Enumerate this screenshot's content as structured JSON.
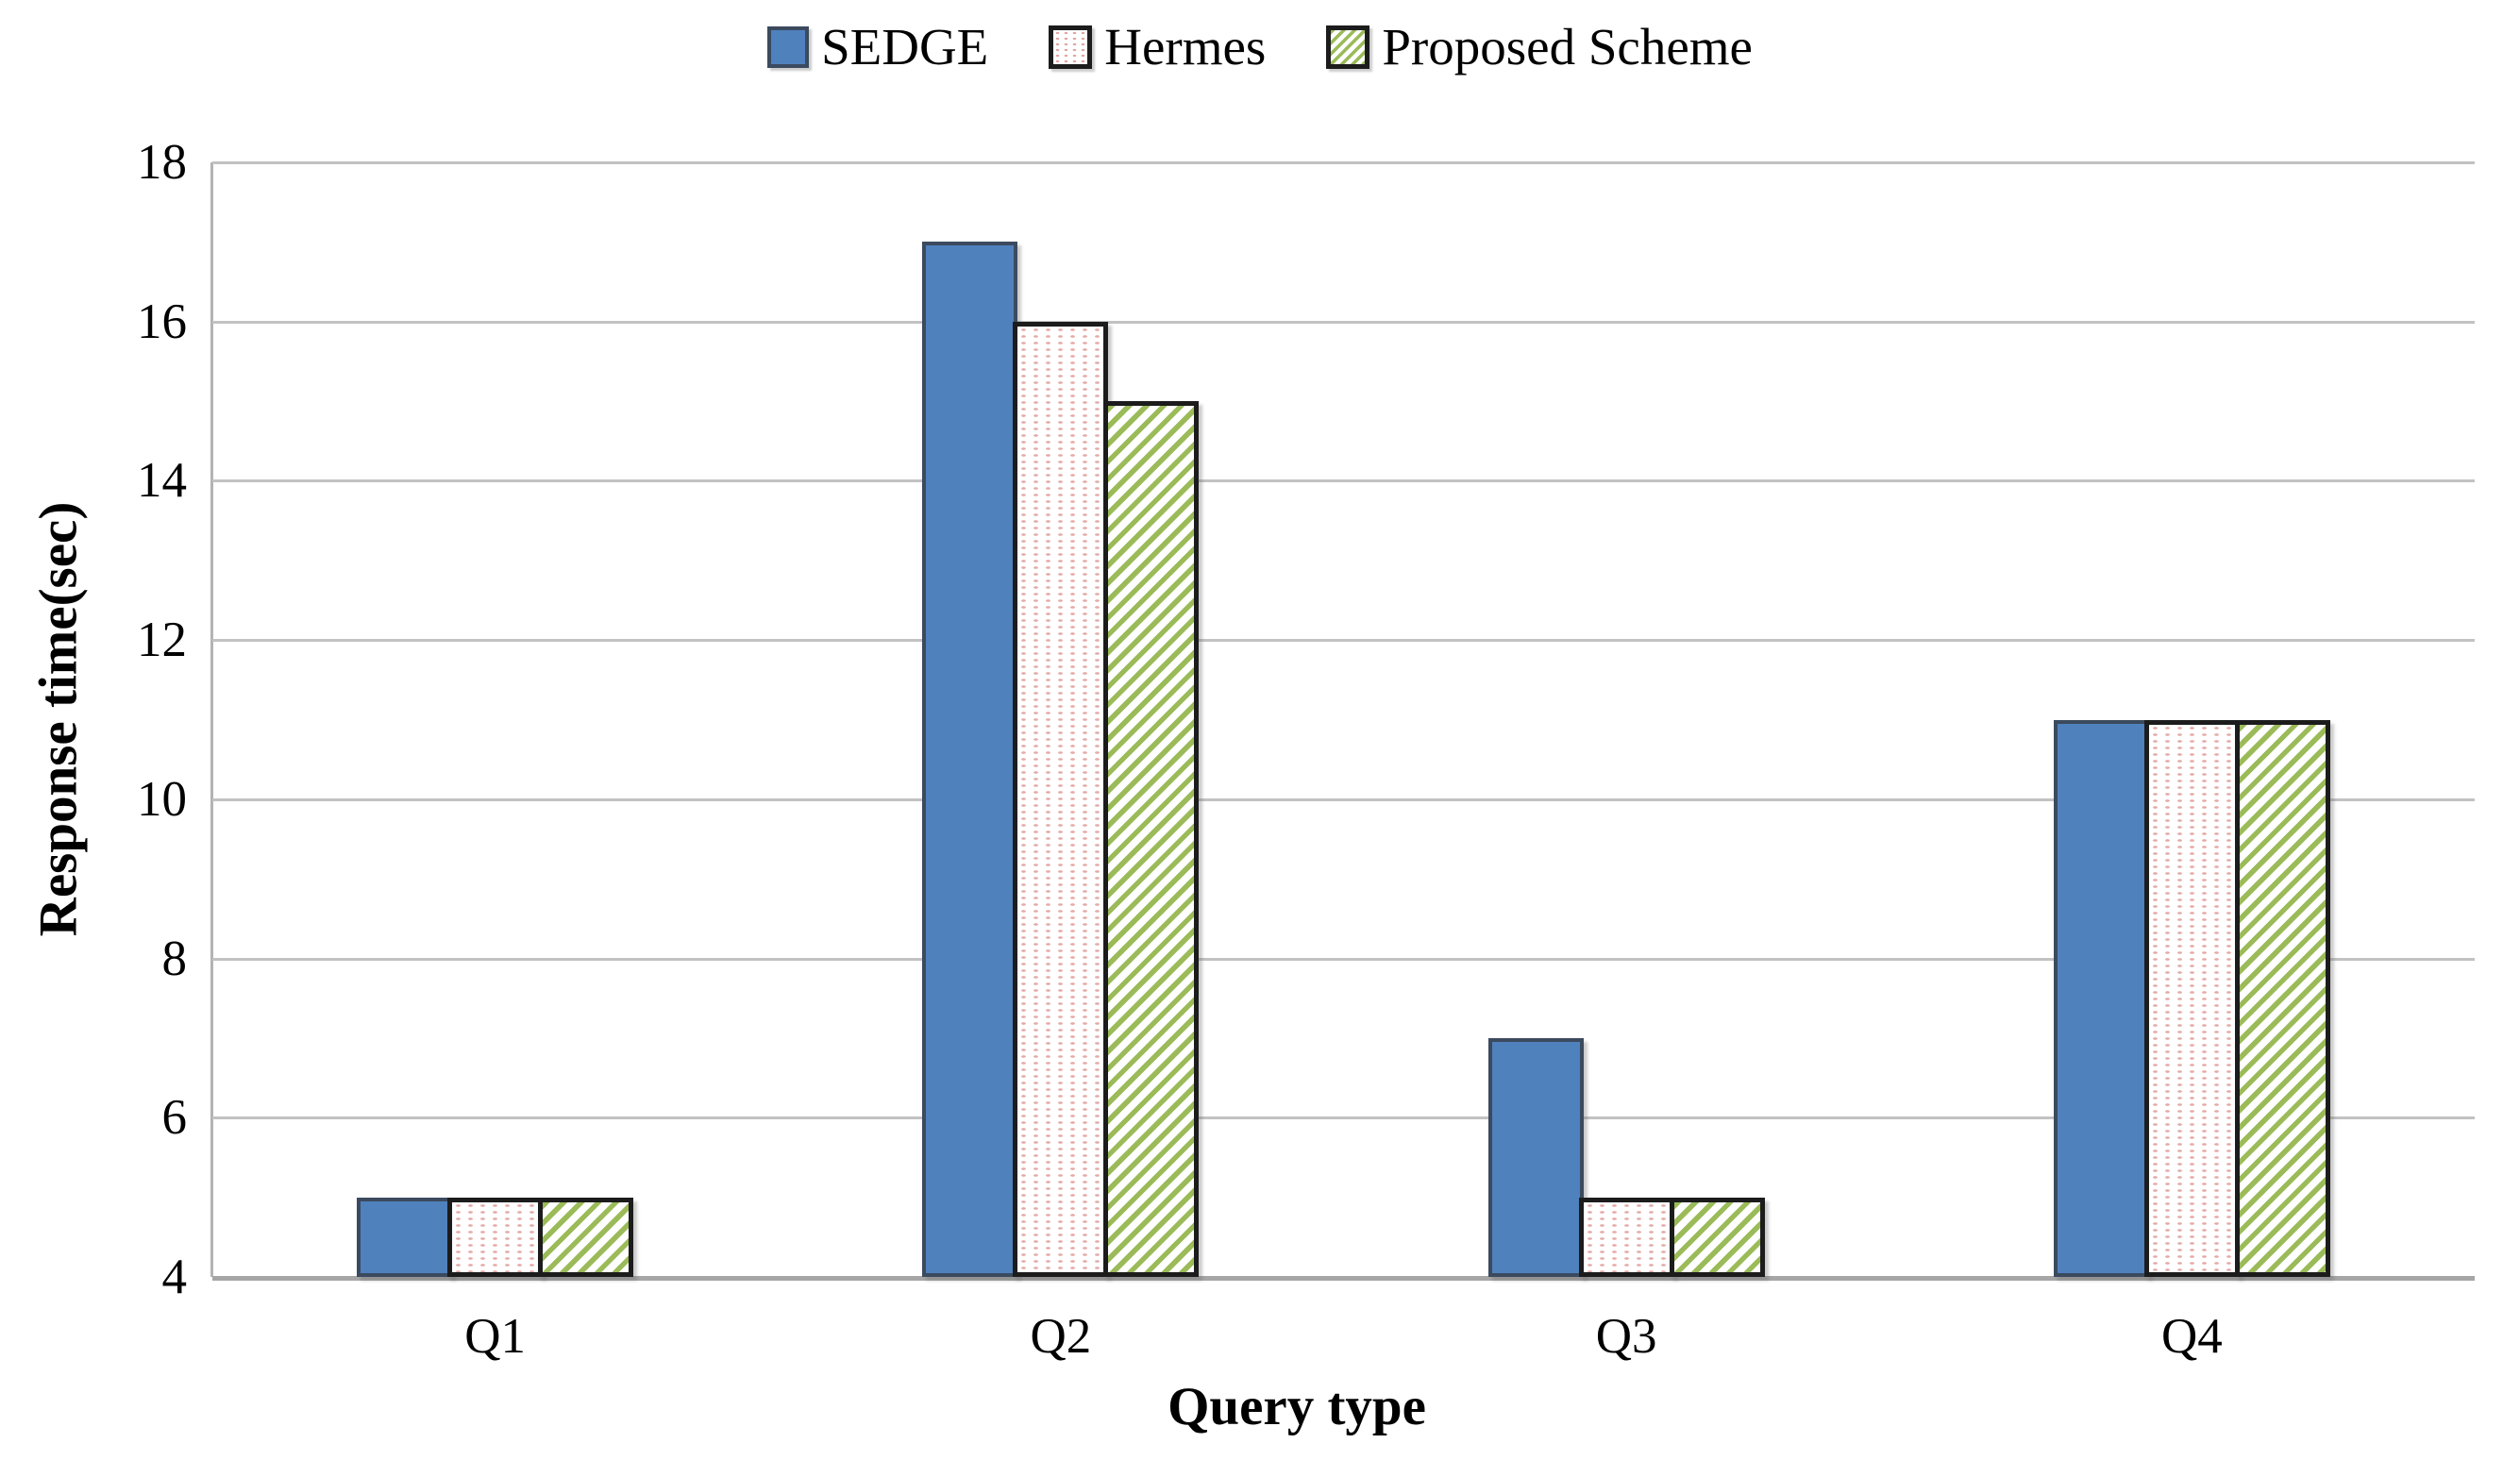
{
  "chart_data": {
    "type": "bar",
    "categories": [
      "Q1",
      "Q2",
      "Q3",
      "Q4"
    ],
    "series": [
      {
        "name": "SEDGE",
        "values": [
          5,
          17,
          7,
          11
        ],
        "style": "solid-blue"
      },
      {
        "name": "Hermes",
        "values": [
          5,
          16,
          5,
          11
        ],
        "style": "dotted-red"
      },
      {
        "name": "Proposed Scheme",
        "values": [
          5,
          15,
          5,
          11
        ],
        "style": "hatched-green"
      }
    ],
    "xlabel": "Query type",
    "ylabel": "Response time(sec)",
    "ylim": [
      4,
      18
    ],
    "yticks": [
      4,
      6,
      8,
      10,
      12,
      14,
      16,
      18
    ],
    "grid": true,
    "legend_position": "top"
  },
  "colors": {
    "sedge_fill": "#4f81bd",
    "sedge_border": "#3b4a5e",
    "hermes_dot": "#cd6862",
    "proposed_stripe": "#9bbb59",
    "pattern_border": "#1c1c1c",
    "gridline": "#c2c2c2",
    "axis_line": "#a6a6a6",
    "text": "#000000",
    "background": "#ffffff"
  }
}
